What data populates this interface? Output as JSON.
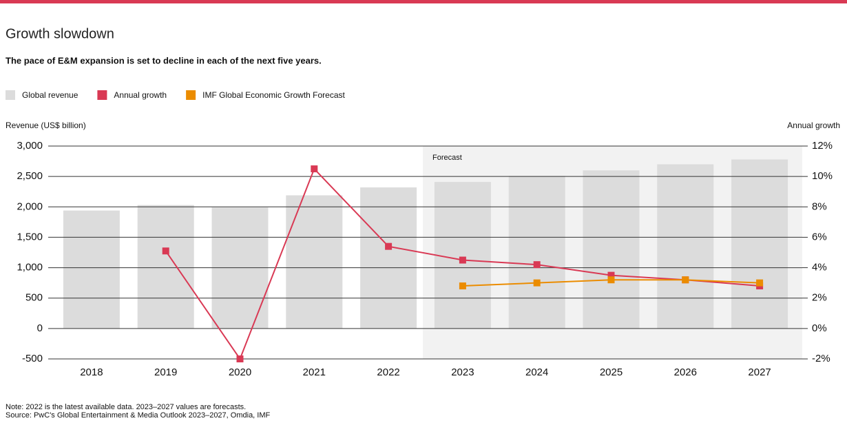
{
  "chart_data": {
    "type": "bar-line",
    "title": "Growth slowdown",
    "subtitle": "The pace of E&M expansion is set to decline in each of the next five years.",
    "y_label": "Revenue (US$ billion)",
    "y2_label": "Annual growth",
    "annotation": "Forecast",
    "forecast_start": "2023",
    "note": "Note: 2022 is the latest available data. 2023–2027 values are forecasts.",
    "source": "Source: PwC's Global Entertainment & Media Outlook 2023–2027, Omdia, IMF",
    "categories": [
      "2018",
      "2019",
      "2020",
      "2021",
      "2022",
      "2023",
      "2024",
      "2025",
      "2026",
      "2027"
    ],
    "series": [
      {
        "name": "Global revenue",
        "type": "bar",
        "color": "#dcdcdc",
        "values": [
          1940,
          2030,
          1990,
          2190,
          2320,
          2410,
          2510,
          2600,
          2700,
          2780
        ]
      },
      {
        "name": "Annual growth",
        "type": "line",
        "axis": "y2",
        "color": "#d93954",
        "values": [
          null,
          5.1,
          -2.0,
          10.5,
          5.4,
          4.5,
          4.2,
          3.5,
          3.2,
          2.8
        ]
      },
      {
        "name": "IMF Global Economic Growth Forecast",
        "type": "line",
        "axis": "y2",
        "color": "#eb8c00",
        "values": [
          null,
          null,
          null,
          null,
          null,
          2.8,
          3.0,
          3.2,
          3.2,
          3.0
        ]
      }
    ],
    "ylim": [
      -500,
      3000
    ],
    "yticks": [
      -500,
      0,
      {
        "value": 500,
        "label": "500"
      },
      {
        "value": 1000,
        "label": "1,000"
      },
      {
        "value": 1500,
        "label": "1,500"
      },
      {
        "value": 2000,
        "label": "2,000"
      },
      {
        "value": 2500,
        "label": "2,500"
      },
      {
        "value": 3000,
        "label": "3,000"
      }
    ],
    "y2lim": [
      -2,
      12
    ],
    "y2ticks": [
      {
        "value": -2,
        "label": "-2%"
      },
      {
        "value": 0,
        "label": "0%"
      },
      {
        "value": 2,
        "label": "2%"
      },
      {
        "value": 4,
        "label": "4%"
      },
      {
        "value": 6,
        "label": "6%"
      },
      {
        "value": 8,
        "label": "8%"
      },
      {
        "value": 10,
        "label": "10%"
      },
      {
        "value": 12,
        "label": "12%"
      }
    ],
    "grid": true
  }
}
